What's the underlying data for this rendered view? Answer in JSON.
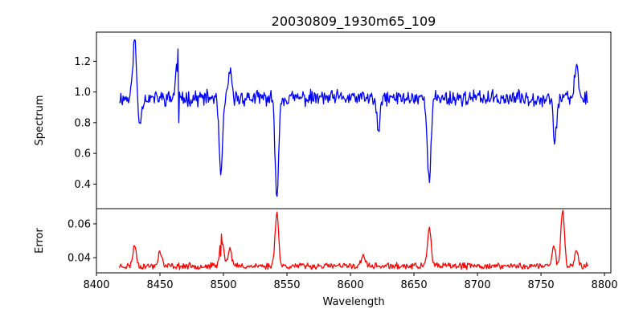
{
  "chart_data": [
    {
      "type": "line",
      "title": "20030809_1930m65_109",
      "xlabel": "",
      "ylabel": "Spectrum",
      "xlim": [
        8400,
        8805
      ],
      "ylim": [
        0.24,
        1.39
      ],
      "yticks": [
        "0.4",
        "0.6",
        "0.8",
        "1.0",
        "1.2"
      ],
      "xticks": [],
      "grid": false,
      "color": "#0000ff",
      "series": [
        {
          "x_range": [
            8418,
            8787
          ],
          "continuum": 0.96,
          "noise": 0.04,
          "features": [
            {
              "x": 8430,
              "y": 1.34
            },
            {
              "x": 8434,
              "y": 0.8
            },
            {
              "x": 8464,
              "y": 1.28
            },
            {
              "x": 8465,
              "y": 0.8
            },
            {
              "x": 8498,
              "y": 0.46
            },
            {
              "x": 8505,
              "y": 1.12
            },
            {
              "x": 8542,
              "y": 0.32
            },
            {
              "x": 8622,
              "y": 0.75
            },
            {
              "x": 8662,
              "y": 0.41
            },
            {
              "x": 8761,
              "y": 0.69
            },
            {
              "x": 8778,
              "y": 1.18
            }
          ]
        }
      ]
    },
    {
      "type": "line",
      "title": "",
      "xlabel": "Wavelength",
      "ylabel": "Error",
      "xlim": [
        8400,
        8805
      ],
      "ylim": [
        0.031,
        0.069
      ],
      "yticks": [
        "0.04",
        "0.06"
      ],
      "xticks": [
        "8400",
        "8450",
        "8500",
        "8550",
        "8600",
        "8650",
        "8700",
        "8750",
        "8800"
      ],
      "grid": false,
      "color": "#ff0000",
      "series": [
        {
          "x_range": [
            8418,
            8787
          ],
          "continuum": 0.035,
          "noise": 0.0015,
          "features": [
            {
              "x": 8430,
              "y": 0.047
            },
            {
              "x": 8450,
              "y": 0.044
            },
            {
              "x": 8498,
              "y": 0.041
            },
            {
              "x": 8499,
              "y": 0.048
            },
            {
              "x": 8505,
              "y": 0.046
            },
            {
              "x": 8542,
              "y": 0.067
            },
            {
              "x": 8610,
              "y": 0.042
            },
            {
              "x": 8662,
              "y": 0.058
            },
            {
              "x": 8760,
              "y": 0.047
            },
            {
              "x": 8767,
              "y": 0.068
            },
            {
              "x": 8778,
              "y": 0.044
            }
          ]
        }
      ]
    }
  ]
}
